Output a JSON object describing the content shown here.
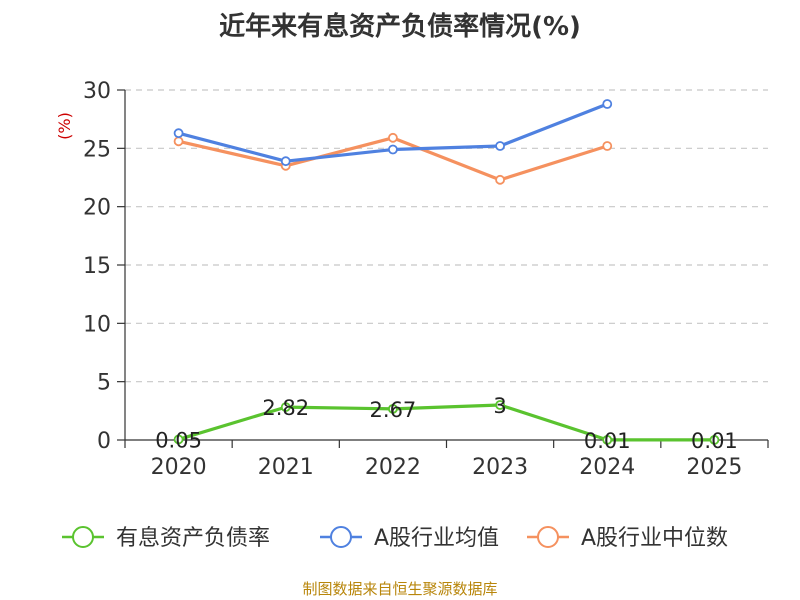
{
  "title": "近年来有息资产负债率情况(%)",
  "source": "制图数据来自恒生聚源数据库",
  "chart_data": {
    "type": "line",
    "title": "近年来有息资产负债率情况(%)",
    "ylabel": "(%)",
    "xlabel": "",
    "categories": [
      "2020",
      "2021",
      "2022",
      "2023",
      "2024",
      "2025"
    ],
    "ylim": [
      0,
      30
    ],
    "yticks": [
      0,
      5,
      10,
      15,
      20,
      25,
      30
    ],
    "grid": true,
    "legend_position": "bottom",
    "series": [
      {
        "name": "有息资产负债率",
        "color": "#5ac32f",
        "values": [
          0.05,
          2.82,
          2.67,
          3,
          0.01,
          0.01
        ],
        "labels": [
          "0.05",
          "2.82",
          "2.67",
          "3",
          "0.01",
          "0.01"
        ]
      },
      {
        "name": "A股行业均值",
        "color": "#4f81e0",
        "values": [
          26.3,
          23.9,
          24.9,
          25.2,
          28.8,
          null
        ]
      },
      {
        "name": "A股行业中位数",
        "color": "#f5915f",
        "values": [
          25.6,
          23.5,
          25.9,
          22.3,
          25.2,
          null
        ]
      }
    ]
  }
}
